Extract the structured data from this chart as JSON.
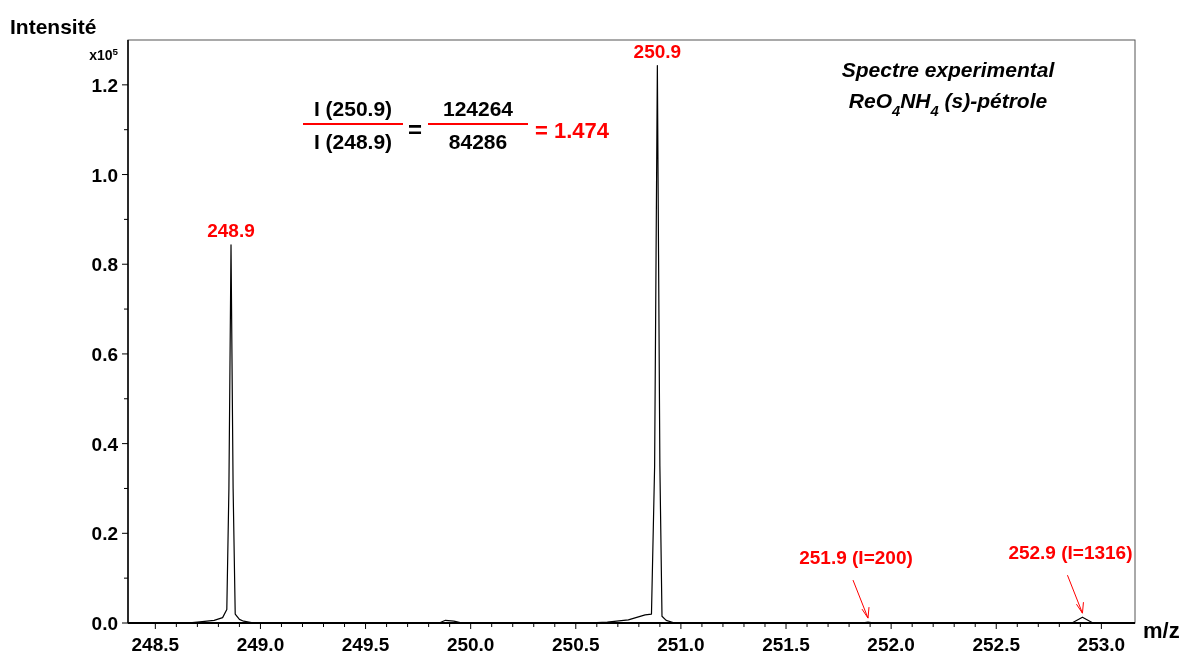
{
  "chart_data": {
    "type": "line",
    "title": "Spectre experimental",
    "subtitle": "ReO$_{4}$NH$_{4}$ (s)-pétrole",
    "xlabel": "m/z",
    "ylabel": "Intensité",
    "annotations": [
      "x10$^{5}$",
      "I (250.9)",
      "I (248.9)",
      "=",
      "124264",
      "84286",
      "= 1.474",
      {
        "text": "248.9",
        "x": 248.86,
        "y": 0.843
      },
      {
        "text": "250.9",
        "x": 250.888,
        "y": 1.243
      },
      {
        "text": "251.9 (I=200)",
        "x": 251.89,
        "y": 0.002
      },
      {
        "text": "252.9 (I=1316)",
        "x": 252.91,
        "y": 0.013
      }
    ],
    "series": [
      {
        "color": "#000000",
        "x": [
          248.37,
          248.65,
          248.7,
          248.78,
          248.82,
          248.84,
          248.85,
          248.86,
          248.87,
          248.88,
          248.9,
          248.92,
          248.97,
          249.85,
          249.88,
          249.92,
          249.96,
          250.55,
          250.65,
          250.75,
          250.83,
          250.86,
          250.875,
          250.888,
          250.9,
          250.91,
          250.93,
          250.97,
          251.86,
          251.89,
          251.92,
          252.86,
          252.91,
          252.96,
          253.16
        ],
        "values": [
          0,
          0,
          0.002,
          0.006,
          0.012,
          0.03,
          0.3,
          0.843,
          0.3,
          0.02,
          0.008,
          0.004,
          0,
          0,
          0.006,
          0.004,
          0,
          0,
          0.002,
          0.007,
          0.018,
          0.02,
          0.35,
          1.243,
          0.35,
          0.015,
          0.006,
          0,
          0,
          0.002,
          0,
          0,
          0.013,
          0,
          0
        ]
      }
    ],
    "xlim": [
      248.37,
      253.16
    ],
    "ylim": [
      0,
      1.3
    ],
    "xticks": [
      248.5,
      {
        "value": 248.6,
        "label": null
      },
      {
        "value": 248.7,
        "label": null
      },
      {
        "value": 248.8,
        "label": null
      },
      {
        "value": 248.9,
        "label": null
      },
      {
        "value": 249,
        "label": "249.0"
      },
      {
        "value": 249.1,
        "label": null
      },
      {
        "value": 249.2,
        "label": null
      },
      {
        "value": 249.3,
        "label": null
      },
      {
        "value": 249.4,
        "label": null
      },
      249.5,
      {
        "value": 249.6,
        "label": null
      },
      {
        "value": 249.7,
        "label": null
      },
      {
        "value": 249.8,
        "label": null
      },
      {
        "value": 249.9,
        "label": null
      },
      {
        "value": 250,
        "label": "250.0"
      },
      {
        "value": 250.1,
        "label": null
      },
      {
        "value": 250.2,
        "label": null
      },
      {
        "value": 250.3,
        "label": null
      },
      {
        "value": 250.4,
        "label": null
      },
      250.5,
      {
        "value": 250.6,
        "label": null
      },
      {
        "value": 250.7,
        "label": null
      },
      {
        "value": 250.8,
        "label": null
      },
      {
        "value": 250.9,
        "label": null
      },
      {
        "value": 251,
        "label": "251.0"
      },
      {
        "value": 251.1,
        "label": null
      },
      {
        "value": 251.2,
        "label": null
      },
      {
        "value": 251.3,
        "label": null
      },
      {
        "value": 251.4,
        "label": null
      },
      251.5,
      {
        "value": 251.6,
        "label": null
      },
      {
        "value": 251.7,
        "label": null
      },
      {
        "value": 251.8,
        "label": null
      },
      {
        "value": 251.9,
        "label": null
      },
      {
        "value": 252,
        "label": "252.0"
      },
      {
        "value": 252.1,
        "label": null
      },
      {
        "value": 252.2,
        "label": null
      },
      {
        "value": 252.3,
        "label": null
      },
      {
        "value": 252.4,
        "label": null
      },
      252.5,
      {
        "value": 252.6,
        "label": null
      },
      {
        "value": 252.7,
        "label": null
      },
      {
        "value": 252.8,
        "label": null
      },
      {
        "value": 252.9,
        "label": null
      },
      {
        "value": 253,
        "label": "253.0"
      }
    ],
    "yticks": [
      {
        "value": 0,
        "label": "0.0"
      },
      {
        "value": 0.1,
        "label": null
      },
      0.2,
      {
        "value": 0.3,
        "label": null
      },
      0.4,
      {
        "value": 0.5,
        "label": null
      },
      0.6,
      {
        "value": 0.7,
        "label": null
      },
      0.8,
      {
        "value": 0.9,
        "label": null
      },
      {
        "value": 1,
        "label": "1.0"
      },
      {
        "value": 1.1,
        "label": null
      },
      1.2
    ],
    "grid": false,
    "marker": "none",
    "line_style": "solid"
  }
}
